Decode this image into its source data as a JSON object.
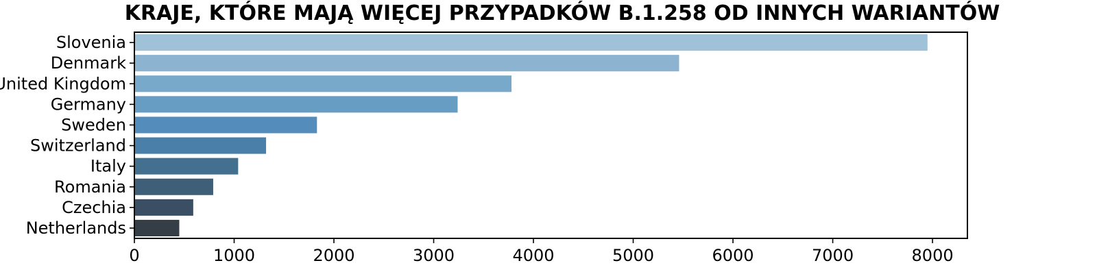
{
  "chart_data": {
    "type": "bar",
    "orientation": "horizontal",
    "title": "KRAJE, KTÓRE MAJĄ WIĘCEJ PRZYPADKÓW B.1.258 OD INNYCH WARIANTÓW",
    "xlabel": "",
    "ylabel": "",
    "categories": [
      "Slovenia",
      "Denmark",
      "United Kingdom",
      "Germany",
      "Sweden",
      "Switzerland",
      "Italy",
      "Romania",
      "Czechia",
      "Netherlands"
    ],
    "values": [
      7950,
      5460,
      3780,
      3240,
      1830,
      1320,
      1040,
      790,
      590,
      450
    ],
    "bar_colors": [
      "#a0c2d9",
      "#8cb4d0",
      "#79a9ca",
      "#679cc3",
      "#548dbb",
      "#4a7fa9",
      "#43708f",
      "#3e5f77",
      "#3a4f64",
      "#353e47"
    ],
    "xlim": [
      0,
      8350
    ],
    "xticks": [
      0,
      1000,
      2000,
      3000,
      4000,
      5000,
      6000,
      7000,
      8000
    ],
    "grid": false,
    "legend": "none"
  }
}
